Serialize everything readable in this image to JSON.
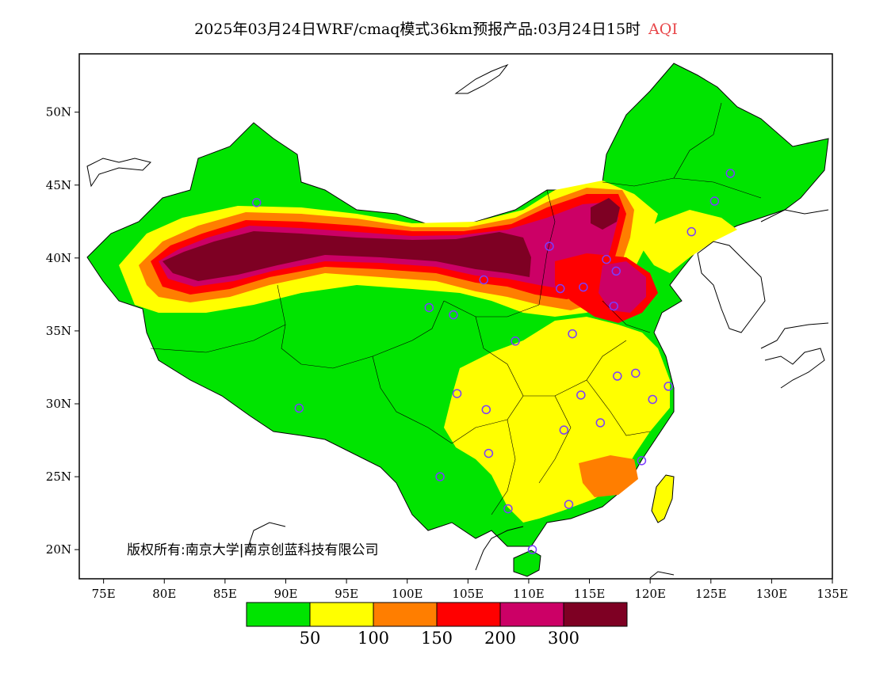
{
  "title": {
    "main": "2025年03月24日WRF/cmaq模式36km预报产品:03月24日15时",
    "variable": "AQI",
    "variable_color": "#e8484b"
  },
  "copyright": "版权所有:南京大学|南京创蓝科技有限公司",
  "map": {
    "lon_range": [
      73,
      135
    ],
    "lat_range": [
      18,
      54
    ],
    "lon_ticks": [
      "75E",
      "80E",
      "85E",
      "90E",
      "95E",
      "100E",
      "105E",
      "110E",
      "115E",
      "120E",
      "125E",
      "130E",
      "135E"
    ],
    "lat_ticks": [
      "20N",
      "25N",
      "30N",
      "35N",
      "40N",
      "45N",
      "50N"
    ],
    "background": "#ffffff"
  },
  "legend": {
    "colors": [
      "#00e400",
      "#ffff00",
      "#ff7e00",
      "#ff0000",
      "#cc0066",
      "#7e0023"
    ],
    "labels": [
      "50",
      "100",
      "150",
      "200",
      "300"
    ]
  },
  "stations": [
    {
      "lon": 87.6,
      "lat": 43.8
    },
    {
      "lon": 91.1,
      "lat": 29.7
    },
    {
      "lon": 101.8,
      "lat": 36.6
    },
    {
      "lon": 103.8,
      "lat": 36.1
    },
    {
      "lon": 106.3,
      "lat": 38.5
    },
    {
      "lon": 111.7,
      "lat": 40.8
    },
    {
      "lon": 112.6,
      "lat": 37.9
    },
    {
      "lon": 114.5,
      "lat": 38.0
    },
    {
      "lon": 116.4,
      "lat": 39.9
    },
    {
      "lon": 117.2,
      "lat": 39.1
    },
    {
      "lon": 117.0,
      "lat": 36.7
    },
    {
      "lon": 113.6,
      "lat": 34.8
    },
    {
      "lon": 108.9,
      "lat": 34.3
    },
    {
      "lon": 104.1,
      "lat": 30.7
    },
    {
      "lon": 106.5,
      "lat": 29.6
    },
    {
      "lon": 106.7,
      "lat": 26.6
    },
    {
      "lon": 102.7,
      "lat": 25.0
    },
    {
      "lon": 108.3,
      "lat": 22.8
    },
    {
      "lon": 113.3,
      "lat": 23.1
    },
    {
      "lon": 110.3,
      "lat": 20.0
    },
    {
      "lon": 112.9,
      "lat": 28.2
    },
    {
      "lon": 114.3,
      "lat": 30.6
    },
    {
      "lon": 115.9,
      "lat": 28.7
    },
    {
      "lon": 117.3,
      "lat": 31.9
    },
    {
      "lon": 118.8,
      "lat": 32.1
    },
    {
      "lon": 120.2,
      "lat": 30.3
    },
    {
      "lon": 121.5,
      "lat": 31.2
    },
    {
      "lon": 119.3,
      "lat": 26.1
    },
    {
      "lon": 123.4,
      "lat": 41.8
    },
    {
      "lon": 125.3,
      "lat": 43.9
    },
    {
      "lon": 126.6,
      "lat": 45.8
    }
  ]
}
